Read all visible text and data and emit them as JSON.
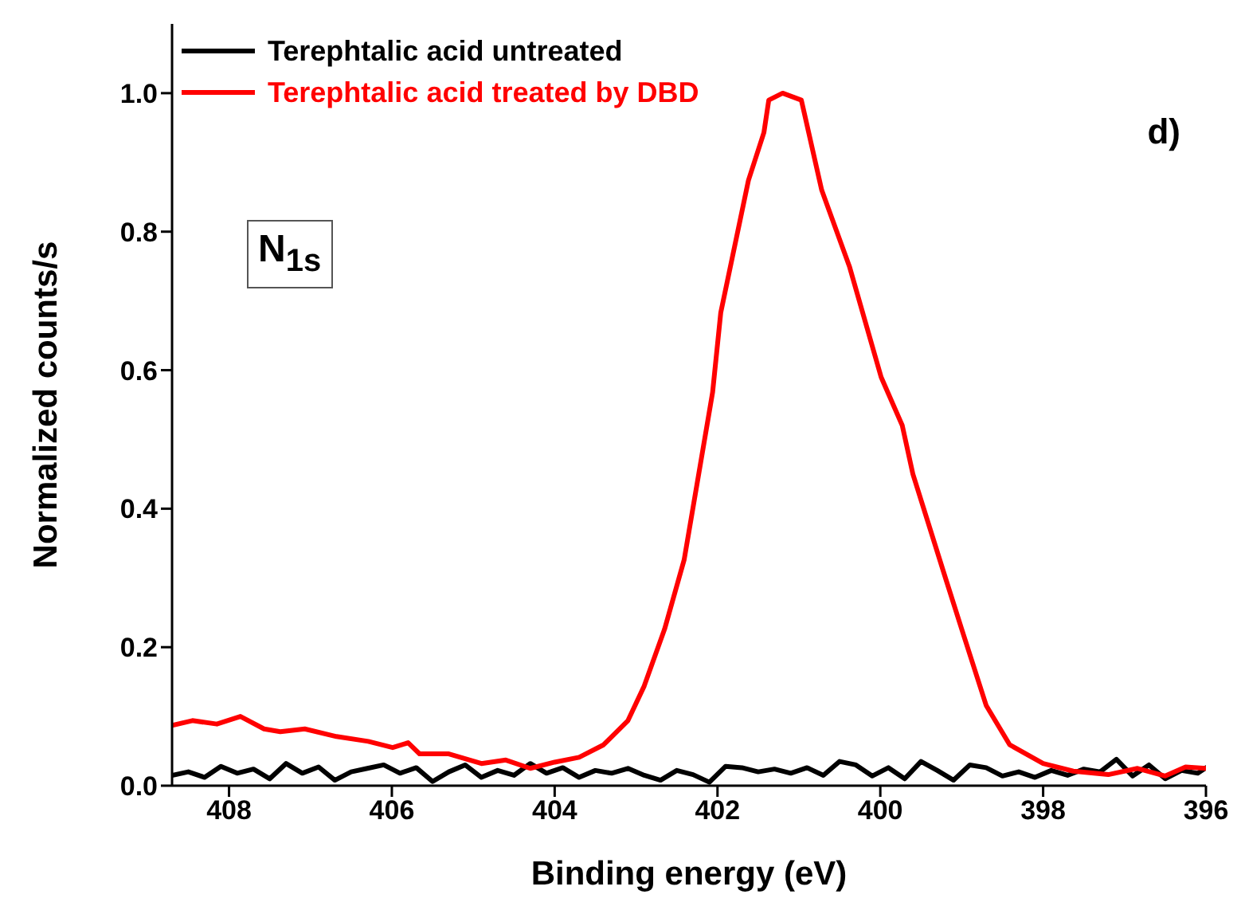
{
  "chart_data": {
    "type": "line",
    "xlabel": "Binding energy (eV)",
    "ylabel": "Normalized counts/s",
    "xlim": [
      408.7,
      396
    ],
    "xticks": [
      408,
      406,
      404,
      402,
      400,
      398,
      396
    ],
    "ylim": [
      0,
      1.1
    ],
    "yticks": [
      {
        "value": 0,
        "label": "0.0"
      },
      0.2,
      0.4,
      0.6,
      0.8,
      {
        "value": 1,
        "label": "1.0"
      }
    ],
    "grid": false,
    "legend": "top left",
    "marker": "none",
    "line_style": "solid",
    "annotations": [
      "d)",
      "N$_{1s}$"
    ],
    "series": [
      {
        "name": "Terephtalic acid untreated",
        "color": "#000000",
        "x": [
          408.7,
          408.5,
          408.3,
          408.1,
          407.9,
          407.7,
          407.5,
          407.3,
          407.1,
          406.9,
          406.7,
          406.5,
          406.3,
          406.1,
          405.9,
          405.7,
          405.5,
          405.3,
          405.1,
          404.9,
          404.7,
          404.5,
          404.3,
          404.1,
          403.9,
          403.7,
          403.5,
          403.3,
          403.1,
          402.9,
          402.7,
          402.5,
          402.3,
          402.1,
          401.9,
          401.7,
          401.5,
          401.3,
          401.1,
          400.9,
          400.7,
          400.5,
          400.3,
          400.1,
          399.9,
          399.7,
          399.5,
          399.3,
          399.1,
          398.9,
          398.7,
          398.5,
          398.3,
          398.1,
          397.9,
          397.7,
          397.5,
          397.3,
          397.1,
          396.9,
          396.7,
          396.5,
          396.3,
          396.1,
          396
        ],
        "values": [
          0.015,
          0.02,
          0.012,
          0.028,
          0.018,
          0.024,
          0.01,
          0.032,
          0.018,
          0.027,
          0.008,
          0.02,
          0.025,
          0.03,
          0.018,
          0.026,
          0.006,
          0.02,
          0.03,
          0.012,
          0.022,
          0.015,
          0.032,
          0.018,
          0.026,
          0.012,
          0.022,
          0.018,
          0.025,
          0.015,
          0.008,
          0.022,
          0.016,
          0.005,
          0.028,
          0.026,
          0.02,
          0.024,
          0.018,
          0.026,
          0.015,
          0.035,
          0.03,
          0.014,
          0.026,
          0.01,
          0.035,
          0.022,
          0.008,
          0.03,
          0.026,
          0.014,
          0.02,
          0.012,
          0.022,
          0.015,
          0.024,
          0.02,
          0.038,
          0.014,
          0.03,
          0.01,
          0.022,
          0.018,
          0.026
        ]
      },
      {
        "name": "Terephtalic acid treated by DBD",
        "color": "#ff0000",
        "x": [
          408.7,
          408.45,
          408.15,
          407.86,
          407.57,
          407.37,
          407.07,
          406.68,
          406.29,
          405.99,
          405.8,
          405.66,
          405.3,
          404.9,
          404.6,
          404.3,
          404.0,
          403.7,
          403.4,
          403.1,
          402.9,
          402.65,
          402.41,
          402.06,
          401.96,
          401.62,
          401.43,
          401.37,
          401.2,
          400.97,
          400.72,
          400.38,
          399.99,
          399.73,
          399.6,
          399.2,
          399.0,
          398.7,
          398.41,
          398.0,
          397.63,
          397.2,
          396.84,
          396.5,
          396.25,
          396.0
        ],
        "values": [
          0.087,
          0.094,
          0.089,
          0.1,
          0.082,
          0.078,
          0.082,
          0.071,
          0.064,
          0.055,
          0.062,
          0.046,
          0.046,
          0.032,
          0.037,
          0.025,
          0.034,
          0.041,
          0.059,
          0.094,
          0.144,
          0.226,
          0.326,
          0.568,
          0.683,
          0.874,
          0.943,
          0.99,
          1.0,
          0.99,
          0.86,
          0.75,
          0.59,
          0.52,
          0.45,
          0.3,
          0.226,
          0.116,
          0.059,
          0.032,
          0.021,
          0.016,
          0.025,
          0.014,
          0.027,
          0.025
        ]
      }
    ]
  }
}
